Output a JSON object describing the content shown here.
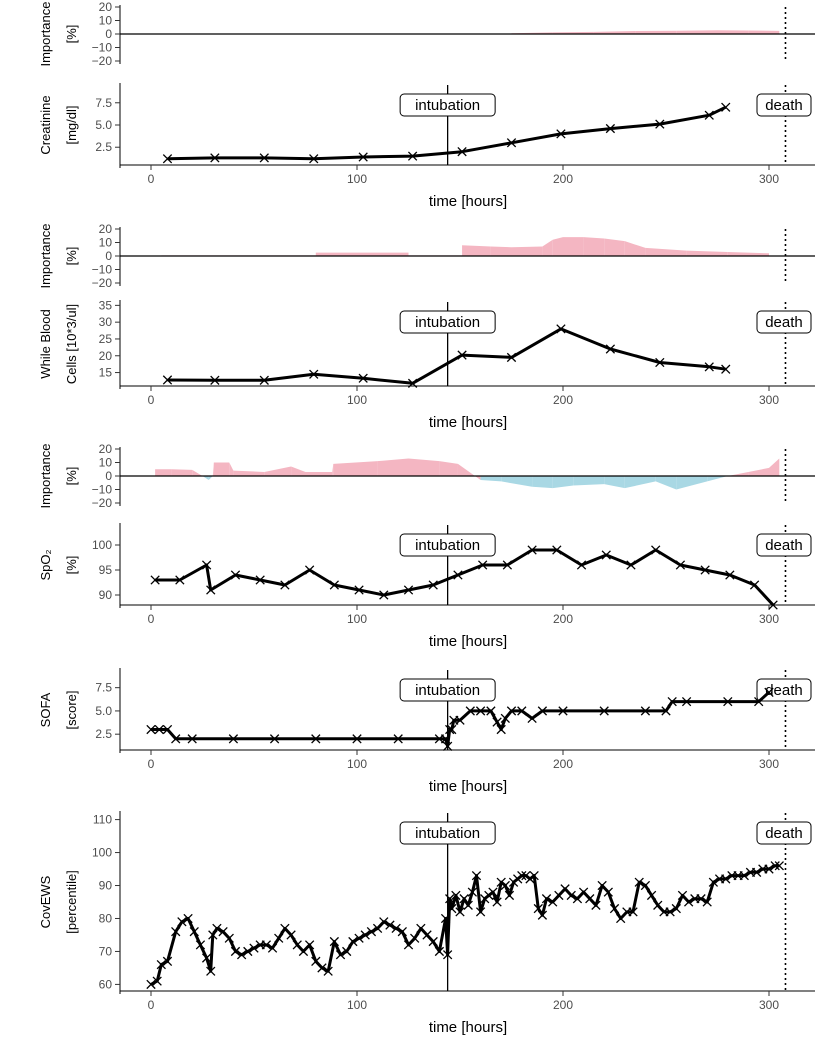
{
  "figure": {
    "intubation_hour": 144,
    "death_hour": 308
  },
  "chart_data": [
    {
      "type": "area",
      "panel": "importance-creatinine",
      "ylabel_lines": [
        "Importance",
        "[%]"
      ],
      "ylim": [
        -20,
        20
      ],
      "yticks": [
        "20",
        "10",
        "0",
        "−10",
        "−20"
      ],
      "x": [
        175,
        195,
        215,
        235,
        255,
        275,
        290,
        305
      ],
      "values": [
        0.6,
        1.2,
        1.6,
        2.2,
        2.4,
        2.8,
        2.6,
        2.3
      ]
    },
    {
      "type": "line",
      "panel": "creatinine",
      "ylabel_lines": [
        "Creatinine",
        "[mg/dl]"
      ],
      "ylim": [
        0.5,
        9.5
      ],
      "yticks": [
        "7.5",
        "5.0",
        "2.5"
      ],
      "x": [
        8,
        31,
        55,
        79,
        103,
        127,
        151,
        175,
        199,
        223,
        247,
        271,
        279
      ],
      "values": [
        1.2,
        1.3,
        1.3,
        1.2,
        1.4,
        1.5,
        2.0,
        3.0,
        4.0,
        4.6,
        5.1,
        6.1,
        7.0
      ],
      "xlabel": "time [hours]",
      "xticks": [
        "0",
        "100",
        "200",
        "300"
      ],
      "annotations": [
        "intubation",
        "death"
      ]
    },
    {
      "type": "area",
      "panel": "importance-wbc",
      "ylabel_lines": [
        "Importance",
        "[%]"
      ],
      "ylim": [
        -20,
        20
      ],
      "yticks": [
        "20",
        "10",
        "0",
        "−10",
        "−20"
      ],
      "x": [
        5,
        80,
        80,
        125,
        125,
        151,
        151,
        165,
        175,
        190,
        195,
        200,
        210,
        220,
        230,
        240,
        260,
        280,
        300
      ],
      "values": [
        0.5,
        0.5,
        2.5,
        2.5,
        0.5,
        0.5,
        8,
        7,
        6.5,
        7,
        12,
        14,
        14,
        13,
        11,
        6,
        4,
        3,
        2
      ]
    },
    {
      "type": "line",
      "panel": "wbc",
      "ylabel_lines": [
        "While Blood",
        "Cells [10*3/ul]"
      ],
      "ylim": [
        11,
        36
      ],
      "yticks": [
        "35",
        "30",
        "25",
        "20",
        "15"
      ],
      "x": [
        8,
        31,
        55,
        79,
        103,
        127,
        151,
        175,
        199,
        223,
        247,
        271,
        279
      ],
      "values": [
        12.8,
        12.7,
        12.7,
        14.5,
        13.3,
        11.8,
        20.2,
        19.5,
        28.0,
        22.0,
        18.0,
        16.7,
        16.0
      ],
      "xlabel": "time [hours]",
      "xticks": [
        "0",
        "100",
        "200",
        "300"
      ],
      "annotations": [
        "intubation",
        "death"
      ]
    },
    {
      "type": "area",
      "panel": "importance-spo2",
      "ylabel_lines": [
        "Importance",
        "[%]"
      ],
      "ylim": [
        -20,
        20
      ],
      "yticks": [
        "20",
        "10",
        "0",
        "−10",
        "−20"
      ],
      "x": [
        2,
        10,
        20,
        25,
        28,
        30,
        30.5,
        38,
        40,
        55,
        68,
        75,
        88,
        88.5,
        110,
        125,
        140,
        149,
        160,
        170,
        185,
        195,
        205,
        220,
        230,
        245,
        255,
        270,
        280,
        290,
        300,
        305
      ],
      "values": [
        5,
        5,
        4.5,
        0,
        -3,
        0,
        10,
        10,
        4,
        3,
        7,
        3,
        3,
        9,
        11,
        13,
        11,
        9,
        -3,
        -4,
        -8,
        -9,
        -7,
        -6,
        -9,
        -4,
        -10,
        -4,
        0,
        3,
        6,
        13
      ]
    },
    {
      "type": "line",
      "panel": "spo2",
      "ylabel_lines": [
        "SpO₂",
        "[%]"
      ],
      "ylim": [
        88,
        104
      ],
      "yticks": [
        "100",
        "95",
        "90"
      ],
      "x": [
        2,
        14,
        27,
        29,
        41,
        53,
        65,
        77,
        89,
        101,
        113,
        125,
        137,
        149,
        161,
        173,
        185,
        197,
        209,
        221,
        233,
        245,
        257,
        269,
        281,
        293,
        302
      ],
      "values": [
        93,
        93,
        96,
        91,
        94,
        93,
        92,
        95,
        92,
        91,
        90,
        91,
        92,
        94,
        96,
        96,
        99,
        99,
        96,
        98,
        96,
        99,
        96,
        95,
        94,
        92,
        88
      ],
      "xlabel": "time [hours]",
      "xticks": [
        "0",
        "100",
        "200",
        "300"
      ],
      "annotations": [
        "intubation",
        "death"
      ]
    },
    {
      "type": "line",
      "panel": "sofa",
      "ylabel_lines": [
        "SOFA",
        "[score]"
      ],
      "ylim": [
        0.8,
        9.4
      ],
      "yticks": [
        "7.5",
        "5.0",
        "2.5"
      ],
      "x": [
        0,
        4,
        8,
        12,
        20,
        40,
        60,
        80,
        100,
        120,
        140,
        143,
        144,
        145,
        146,
        147,
        150,
        155,
        160,
        165,
        168,
        170,
        172,
        175,
        180,
        185,
        190,
        200,
        220,
        240,
        250,
        253,
        260,
        280,
        295,
        300
      ],
      "values": [
        3,
        3,
        3,
        2,
        2,
        2,
        2,
        2,
        2,
        2,
        2,
        2,
        1.2,
        3,
        3,
        4,
        4,
        5,
        5,
        5,
        3.8,
        3,
        4.2,
        5,
        5,
        4.2,
        5,
        5,
        5,
        5,
        5,
        6,
        6,
        6,
        6,
        7
      ],
      "xlabel": "time [hours]",
      "xticks": [
        "0",
        "100",
        "200",
        "300"
      ],
      "annotations": [
        "intubation",
        "death"
      ]
    },
    {
      "type": "line",
      "panel": "covews",
      "ylabel_lines": [
        "CovEWS",
        "[percentile]"
      ],
      "ylim": [
        58,
        112
      ],
      "yticks": [
        "110",
        "100",
        "90",
        "80",
        "70",
        "60"
      ],
      "x": [
        0,
        3,
        5,
        8,
        12,
        15,
        18,
        21,
        24,
        27,
        29,
        30,
        32,
        35,
        38,
        41,
        44,
        47,
        50,
        53,
        56,
        59,
        62,
        65,
        68,
        71,
        74,
        77,
        80,
        83,
        86,
        89,
        92,
        95,
        98,
        101,
        104,
        107,
        110,
        113,
        116,
        119,
        122,
        125,
        128,
        131,
        134,
        137,
        140,
        143,
        144,
        145,
        146,
        148,
        150,
        152,
        154,
        156,
        158,
        160,
        162,
        164,
        166,
        168,
        170,
        172,
        174,
        176,
        178,
        180,
        182,
        184,
        186,
        188,
        190,
        192,
        195,
        198,
        201,
        204,
        207,
        210,
        213,
        216,
        219,
        222,
        225,
        228,
        231,
        234,
        237,
        240,
        243,
        246,
        249,
        252,
        255,
        258,
        261,
        264,
        267,
        270,
        273,
        276,
        279,
        282,
        285,
        288,
        291,
        294,
        297,
        300,
        303,
        305
      ],
      "values": [
        60,
        61,
        66,
        67,
        76,
        79,
        80,
        76,
        72,
        68,
        64,
        75,
        77,
        76,
        74,
        70,
        69,
        70,
        71,
        72,
        72,
        71,
        74,
        77,
        75,
        72,
        70,
        72,
        67,
        65,
        64,
        73,
        69,
        70,
        73,
        74,
        75,
        76,
        77,
        79,
        78,
        77,
        76,
        72,
        74,
        77,
        75,
        73,
        70,
        80,
        69,
        86,
        83,
        87,
        82,
        86,
        84,
        88,
        93,
        82,
        86,
        87,
        88,
        85,
        91,
        90,
        87,
        91,
        92,
        93,
        93,
        92,
        93,
        83,
        81,
        86,
        85,
        87,
        89,
        87,
        86,
        88,
        86,
        84,
        90,
        88,
        83,
        80,
        82,
        82,
        91,
        90,
        87,
        84,
        82,
        82,
        83,
        87,
        85,
        86,
        86,
        85,
        91,
        92,
        92,
        93,
        93,
        93,
        94,
        94,
        95,
        95,
        96,
        96
      ],
      "xlabel": "time [hours]",
      "xticks": [
        "0",
        "100",
        "200",
        "300"
      ],
      "annotations": [
        "intubation",
        "death"
      ]
    }
  ]
}
